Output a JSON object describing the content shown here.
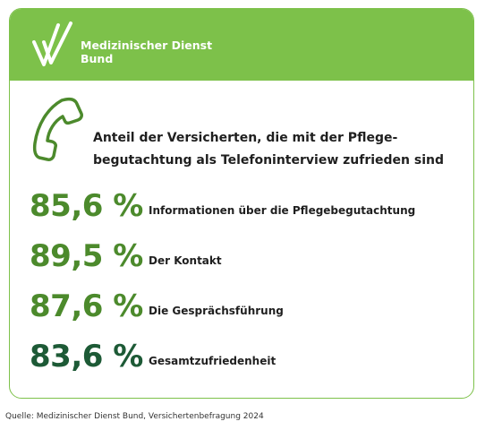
{
  "brand": {
    "line1": "Medizinischer Dienst",
    "line2": "Bund",
    "logo_icon": "checkmark-logo-icon"
  },
  "headline": {
    "line1": "Anteil der Versicherten, die mit der Pflege-",
    "line2": "begutachtung als Telefoninterview zufrieden sind",
    "icon": "phone-handset-icon"
  },
  "stats": [
    {
      "value": "85,6 %",
      "label": "Informationen über die Pflegebegutachtung",
      "color": "#4c8a2c"
    },
    {
      "value": "89,5 %",
      "label": "Der Kontakt",
      "color": "#4c8a2c"
    },
    {
      "value": "87,6 %",
      "label": "Die Gesprächsführung",
      "color": "#4c8a2c"
    },
    {
      "value": "83,6 %",
      "label": "Gesamtzufriedenheit",
      "color": "#1d5a36"
    }
  ],
  "colors": {
    "header_green": "#7dc14a",
    "accent_green": "#4c8a2c",
    "dark_green": "#1d5a36"
  },
  "source": "Quelle: Medizinischer Dienst Bund, Versichertenbefragung 2024"
}
